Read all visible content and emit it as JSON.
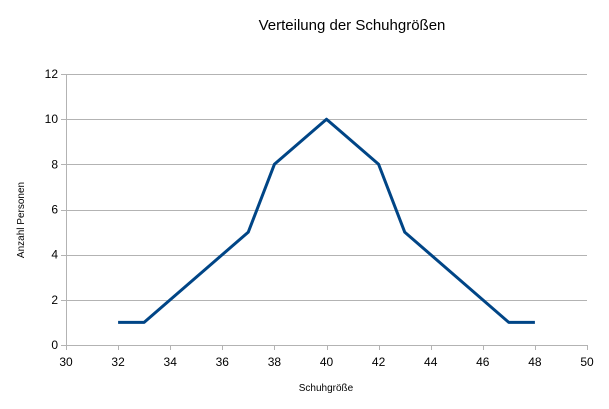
{
  "chart_data": {
    "type": "line",
    "title": "Verteilung der Schuhgrößen",
    "xlabel": "Schuhgröße",
    "ylabel": "Anzahl Personen",
    "xlim": [
      30,
      50
    ],
    "ylim": [
      0,
      12
    ],
    "x_ticks": [
      30,
      32,
      34,
      36,
      38,
      40,
      42,
      44,
      46,
      48,
      50
    ],
    "y_ticks": [
      0,
      2,
      4,
      6,
      8,
      10,
      12
    ],
    "grid": true,
    "legend": "none",
    "series": [
      {
        "color": "#004586",
        "x": [
          32,
          33,
          37,
          38,
          40,
          42,
          43,
          47,
          48
        ],
        "y": [
          1,
          1,
          5,
          8,
          10,
          8,
          5,
          1,
          1
        ]
      }
    ]
  }
}
